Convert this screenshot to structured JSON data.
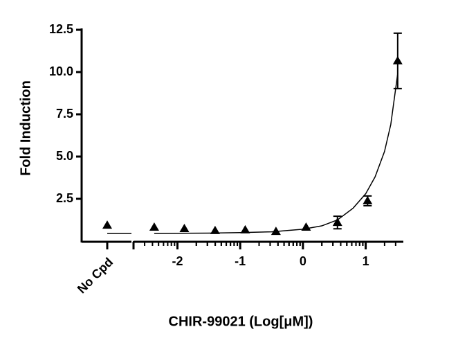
{
  "chart_data": {
    "type": "scatter",
    "ylabel": "Fold Induction",
    "xlabel": "CHIR-99021 (Log[μM])",
    "control": {
      "category": "No Cpd",
      "value": 0.94,
      "fit": 0.45
    },
    "x": [
      -2.37,
      -1.89,
      -1.4,
      -0.92,
      -0.43,
      0.05,
      0.55,
      1.03,
      1.51
    ],
    "values": [
      0.82,
      0.74,
      0.62,
      0.66,
      0.57,
      0.82,
      1.1,
      2.38,
      10.66
    ],
    "errors": [
      null,
      null,
      null,
      null,
      null,
      null,
      0.37,
      0.29,
      1.64
    ],
    "fit": {
      "x": [
        -2.37,
        -2.0,
        -1.5,
        -1.0,
        -0.5,
        0.0,
        0.3,
        0.55,
        0.8,
        1.0,
        1.15,
        1.3,
        1.4,
        1.51
      ],
      "values": [
        0.45,
        0.46,
        0.47,
        0.5,
        0.55,
        0.7,
        0.9,
        1.25,
        1.95,
        2.8,
        3.8,
        5.3,
        6.9,
        9.9
      ]
    },
    "color": "#000000",
    "xlim": [
      -2.7,
      1.6
    ],
    "xticks": [
      -2,
      -1,
      0,
      1
    ],
    "xminor": true,
    "ylim": [
      0,
      12.5
    ],
    "yticks": [
      2.5,
      {
        "value": 5,
        "label": "5.0"
      },
      {
        "value": 7.5,
        "label": "7.5"
      },
      {
        "value": 10,
        "label": "10.0"
      },
      12.5
    ]
  }
}
